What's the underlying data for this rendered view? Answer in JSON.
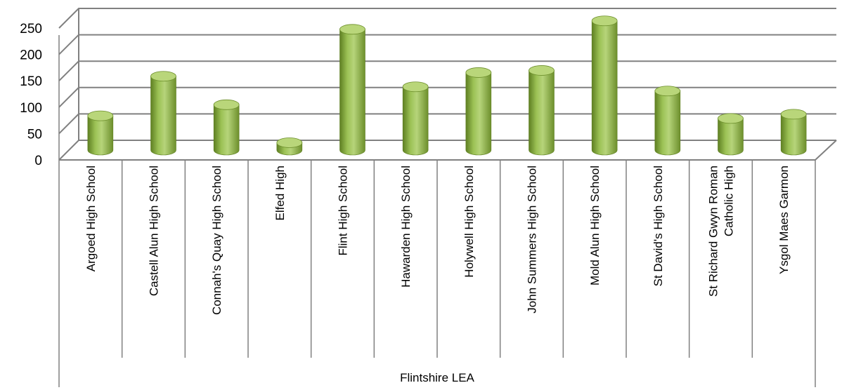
{
  "chart_data": {
    "type": "bar",
    "style": "3d-cylinder",
    "bar_color": "#8db04a",
    "bar_color_dark": "#5e7f22",
    "bar_color_light": "#b9d67a",
    "group_label": "Flintshire LEA",
    "categories": [
      [
        "Argoed High School"
      ],
      [
        "Castell Alun High School"
      ],
      [
        "Connah's Quay High School"
      ],
      [
        "Elfed High"
      ],
      [
        "Flint High School"
      ],
      [
        "Hawarden High School"
      ],
      [
        "Holywell High School"
      ],
      [
        "John Summers High School"
      ],
      [
        "Mold Alun High School"
      ],
      [
        "St David's High School"
      ],
      [
        "St Richard Gwyn Roman",
        "Catholic High"
      ],
      [
        "Ysgol Maes Garmon"
      ]
    ],
    "values": [
      65,
      140,
      86,
      14,
      229,
      120,
      147,
      151,
      245,
      112,
      60,
      68
    ],
    "ylim": [
      0,
      250
    ],
    "yticks": [
      "0",
      "50",
      "100",
      "150",
      "200",
      "250"
    ],
    "grid": true,
    "legend": "none"
  }
}
